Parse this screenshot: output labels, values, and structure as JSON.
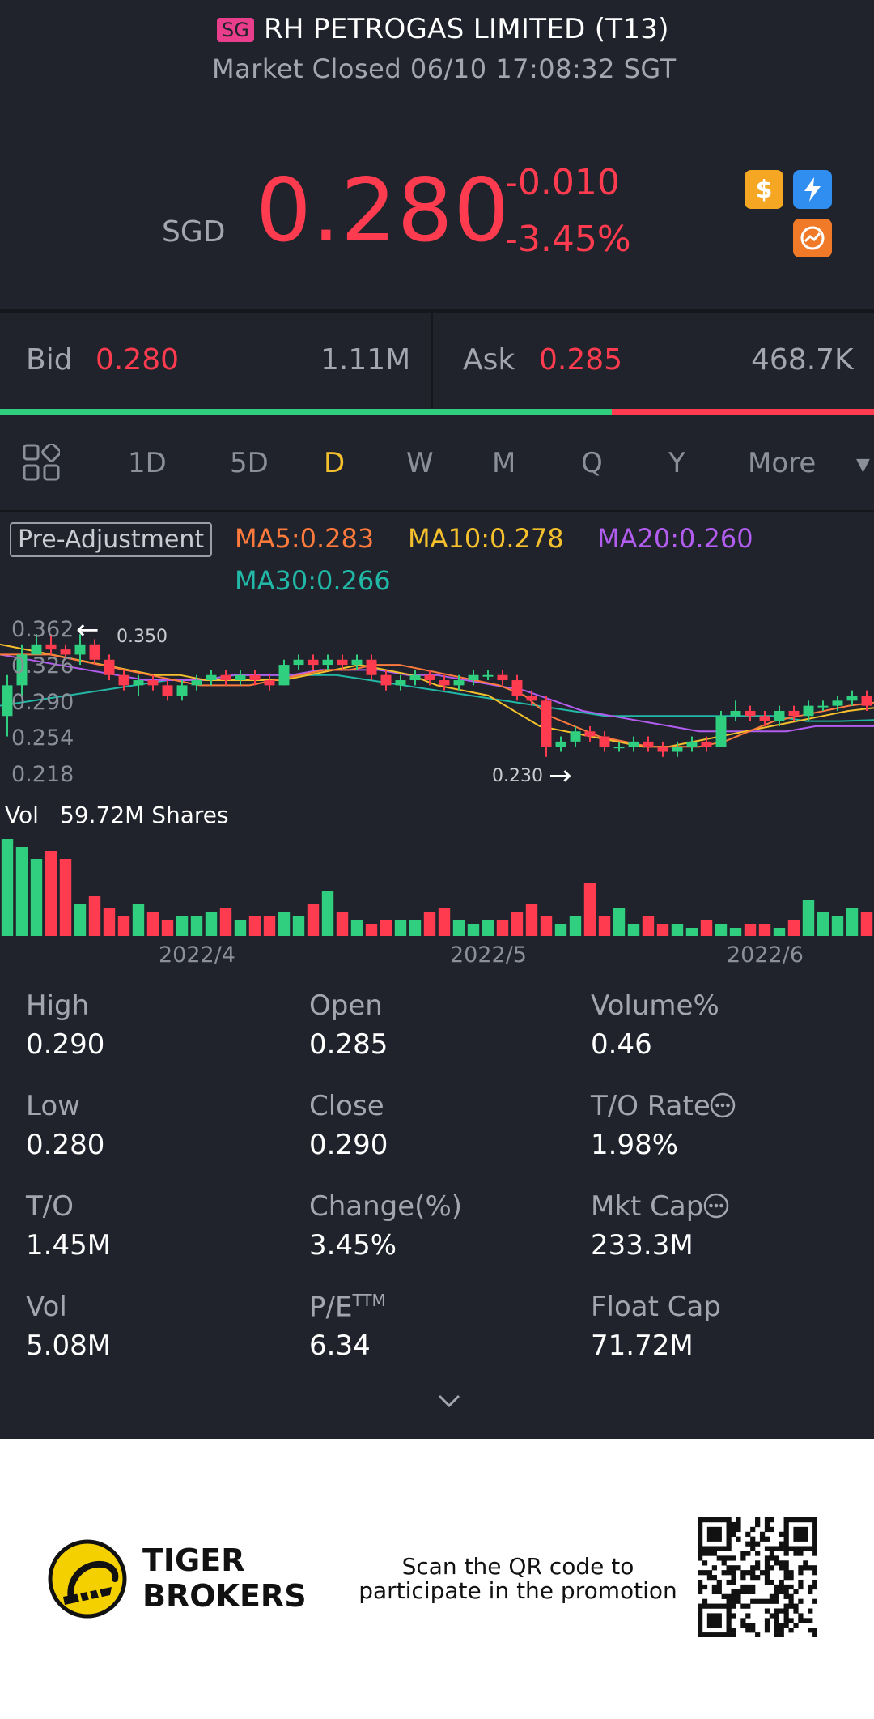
{
  "header": {
    "market_badge": "SG",
    "title": "RH PETROGAS LIMITED (T13)",
    "status": "Market Closed 06/10 17:08:32 SGT"
  },
  "quote": {
    "currency": "SGD",
    "price": "0.280",
    "change": "-0.010",
    "change_pct": "-3.45%"
  },
  "bid_ask": {
    "bid_label": "Bid",
    "bid_price": "0.280",
    "bid_size": "1.11M",
    "ask_label": "Ask",
    "ask_price": "0.285",
    "ask_size": "468.7K",
    "bid_fraction": 0.7
  },
  "tabs": {
    "items": [
      "1D",
      "5D",
      "D",
      "W",
      "M",
      "Q",
      "Y",
      "More"
    ],
    "active": "D"
  },
  "indicators": {
    "pre_adjustment": "Pre-Adjustment",
    "ma5": "MA5:0.283",
    "ma10": "MA10:0.278",
    "ma20": "MA20:0.260",
    "ma30": "MA30:0.266"
  },
  "colors": {
    "up": "#ff3b4f",
    "down": "#2fcf7f",
    "ma5": "#ff7a3d",
    "ma10": "#f5c02d",
    "ma20": "#b25cf0",
    "ma30": "#22b8a7",
    "accent_yellow": "#f5c02d"
  },
  "chart_labels": {
    "y_ticks": [
      "0.362",
      "0.326",
      "0.290",
      "0.254",
      "0.218"
    ],
    "high_marker": "0.350",
    "low_marker": "0.230",
    "vol_label": "Vol",
    "vol_value": "59.72M Shares",
    "x_ticks": [
      "2022/4",
      "2022/5",
      "2022/6"
    ]
  },
  "chart_data": {
    "type": "candlestick",
    "ylim": [
      0.218,
      0.362
    ],
    "x_ticks": [
      "2022/4",
      "2022/5",
      "2022/6"
    ],
    "candles": [
      [
        0.27,
        0.3,
        0.25,
        0.31
      ],
      [
        0.3,
        0.33,
        0.29,
        0.34
      ],
      [
        0.33,
        0.34,
        0.33,
        0.35
      ],
      [
        0.34,
        0.335,
        0.33,
        0.35
      ],
      [
        0.335,
        0.33,
        0.325,
        0.34
      ],
      [
        0.33,
        0.34,
        0.32,
        0.35
      ],
      [
        0.34,
        0.325,
        0.32,
        0.345
      ],
      [
        0.325,
        0.31,
        0.305,
        0.33
      ],
      [
        0.31,
        0.3,
        0.295,
        0.315
      ],
      [
        0.3,
        0.305,
        0.29,
        0.31
      ],
      [
        0.305,
        0.3,
        0.295,
        0.31
      ],
      [
        0.3,
        0.29,
        0.285,
        0.305
      ],
      [
        0.29,
        0.3,
        0.285,
        0.305
      ],
      [
        0.3,
        0.305,
        0.295,
        0.31
      ],
      [
        0.305,
        0.31,
        0.3,
        0.315
      ],
      [
        0.31,
        0.305,
        0.3,
        0.315
      ],
      [
        0.305,
        0.31,
        0.3,
        0.315
      ],
      [
        0.31,
        0.305,
        0.3,
        0.315
      ],
      [
        0.305,
        0.3,
        0.295,
        0.31
      ],
      [
        0.3,
        0.32,
        0.3,
        0.325
      ],
      [
        0.32,
        0.325,
        0.315,
        0.33
      ],
      [
        0.325,
        0.32,
        0.315,
        0.33
      ],
      [
        0.32,
        0.325,
        0.315,
        0.33
      ],
      [
        0.325,
        0.32,
        0.315,
        0.33
      ],
      [
        0.32,
        0.325,
        0.315,
        0.33
      ],
      [
        0.325,
        0.31,
        0.305,
        0.33
      ],
      [
        0.31,
        0.3,
        0.295,
        0.315
      ],
      [
        0.3,
        0.305,
        0.295,
        0.31
      ],
      [
        0.305,
        0.31,
        0.3,
        0.315
      ],
      [
        0.31,
        0.305,
        0.3,
        0.315
      ],
      [
        0.305,
        0.3,
        0.295,
        0.31
      ],
      [
        0.3,
        0.305,
        0.295,
        0.31
      ],
      [
        0.305,
        0.31,
        0.3,
        0.315
      ],
      [
        0.31,
        0.31,
        0.305,
        0.315
      ],
      [
        0.31,
        0.305,
        0.3,
        0.315
      ],
      [
        0.305,
        0.29,
        0.285,
        0.31
      ],
      [
        0.29,
        0.285,
        0.28,
        0.295
      ],
      [
        0.285,
        0.24,
        0.23,
        0.29
      ],
      [
        0.24,
        0.245,
        0.235,
        0.25
      ],
      [
        0.245,
        0.255,
        0.24,
        0.26
      ],
      [
        0.255,
        0.25,
        0.245,
        0.26
      ],
      [
        0.25,
        0.24,
        0.235,
        0.255
      ],
      [
        0.24,
        0.24,
        0.235,
        0.245
      ],
      [
        0.24,
        0.245,
        0.235,
        0.25
      ],
      [
        0.245,
        0.24,
        0.235,
        0.25
      ],
      [
        0.24,
        0.235,
        0.23,
        0.245
      ],
      [
        0.235,
        0.24,
        0.23,
        0.245
      ],
      [
        0.24,
        0.245,
        0.235,
        0.25
      ],
      [
        0.245,
        0.24,
        0.235,
        0.25
      ],
      [
        0.24,
        0.27,
        0.24,
        0.275
      ],
      [
        0.27,
        0.275,
        0.265,
        0.285
      ],
      [
        0.275,
        0.27,
        0.265,
        0.28
      ],
      [
        0.27,
        0.265,
        0.26,
        0.275
      ],
      [
        0.265,
        0.275,
        0.26,
        0.28
      ],
      [
        0.275,
        0.27,
        0.265,
        0.28
      ],
      [
        0.27,
        0.28,
        0.265,
        0.285
      ],
      [
        0.28,
        0.28,
        0.275,
        0.285
      ],
      [
        0.28,
        0.285,
        0.275,
        0.29
      ],
      [
        0.285,
        0.29,
        0.28,
        0.295
      ],
      [
        0.29,
        0.28,
        0.275,
        0.295
      ]
    ],
    "ma5": [
      0.33,
      0.33,
      0.33,
      0.325,
      0.32,
      0.315,
      0.31,
      0.305,
      0.3,
      0.3,
      0.3,
      0.305,
      0.31,
      0.315,
      0.315,
      0.32,
      0.32,
      0.315,
      0.31,
      0.305,
      0.3,
      0.29,
      0.27,
      0.26,
      0.25,
      0.245,
      0.24,
      0.24,
      0.24,
      0.245,
      0.255,
      0.265,
      0.27,
      0.275,
      0.28,
      0.283
    ],
    "ma10": [
      0.34,
      0.335,
      0.33,
      0.325,
      0.32,
      0.315,
      0.31,
      0.31,
      0.305,
      0.305,
      0.305,
      0.305,
      0.31,
      0.315,
      0.32,
      0.315,
      0.31,
      0.3,
      0.295,
      0.29,
      0.275,
      0.26,
      0.255,
      0.25,
      0.245,
      0.24,
      0.24,
      0.245,
      0.25,
      0.255,
      0.26,
      0.265,
      0.27,
      0.275,
      0.278
    ],
    "ma20": [
      0.33,
      0.325,
      0.32,
      0.315,
      0.31,
      0.305,
      0.305,
      0.305,
      0.31,
      0.31,
      0.31,
      0.315,
      0.315,
      0.315,
      0.31,
      0.31,
      0.305,
      0.3,
      0.295,
      0.285,
      0.275,
      0.27,
      0.265,
      0.26,
      0.255,
      0.255,
      0.255,
      0.255,
      0.26,
      0.26,
      0.26
    ],
    "ma30": [
      0.28,
      0.285,
      0.29,
      0.295,
      0.3,
      0.305,
      0.305,
      0.31,
      0.31,
      0.31,
      0.31,
      0.305,
      0.3,
      0.295,
      0.29,
      0.285,
      0.28,
      0.275,
      0.27,
      0.27,
      0.27,
      0.27,
      0.27,
      0.27,
      0.265,
      0.265,
      0.266
    ],
    "volume_millions": [
      24,
      22,
      19,
      21,
      19,
      8,
      10,
      7,
      5,
      8,
      6,
      4,
      5,
      5,
      6,
      7,
      4,
      5,
      5,
      6,
      5,
      8,
      11,
      6,
      4,
      3,
      4,
      4,
      4,
      6,
      7,
      4,
      3,
      4,
      4,
      6,
      8,
      5,
      3,
      5,
      13,
      5,
      7,
      3,
      5,
      3,
      3,
      2,
      4,
      3,
      2,
      3,
      3,
      2,
      4,
      9,
      6,
      5,
      7,
      6
    ],
    "volume_max": 59.72,
    "volume_unit": "M Shares"
  },
  "stats": [
    {
      "label": "High",
      "value": "0.290"
    },
    {
      "label": "Open",
      "value": "0.285"
    },
    {
      "label": "Volume%",
      "value": "0.46"
    },
    {
      "label": "Low",
      "value": "0.280"
    },
    {
      "label": "Close",
      "value": "0.290"
    },
    {
      "label": "T/O Rate",
      "value": "1.98%"
    },
    {
      "label": "T/O",
      "value": "1.45M"
    },
    {
      "label": "Change(%)",
      "value": "3.45%"
    },
    {
      "label": "Mkt Cap",
      "value": "233.3M"
    },
    {
      "label": "Vol",
      "value": "5.08M"
    },
    {
      "label": "P/E",
      "value": "6.34",
      "sup": "TTM"
    },
    {
      "label": "Float Cap",
      "value": "71.72M"
    }
  ],
  "promo": {
    "brand_line1": "TIGER",
    "brand_line2": "BROKERS",
    "text_line1": "Scan the QR code to",
    "text_line2": "participate in the promotion"
  }
}
